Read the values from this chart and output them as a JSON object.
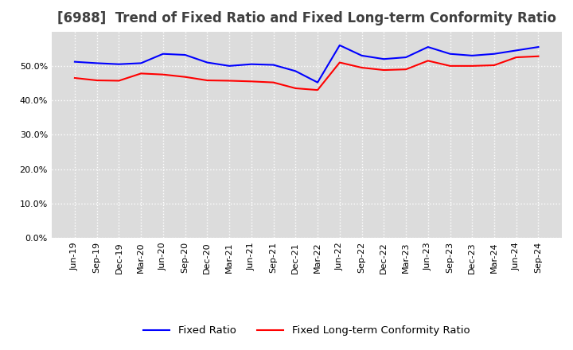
{
  "title": "[6988]  Trend of Fixed Ratio and Fixed Long-term Conformity Ratio",
  "x_labels": [
    "Jun-19",
    "Sep-19",
    "Dec-19",
    "Mar-20",
    "Jun-20",
    "Sep-20",
    "Dec-20",
    "Mar-21",
    "Jun-21",
    "Sep-21",
    "Dec-21",
    "Mar-22",
    "Jun-22",
    "Sep-22",
    "Dec-22",
    "Mar-23",
    "Jun-23",
    "Sep-23",
    "Dec-23",
    "Mar-24",
    "Jun-24",
    "Sep-24"
  ],
  "fixed_ratio": [
    51.2,
    50.8,
    50.5,
    50.8,
    53.5,
    53.2,
    51.0,
    50.0,
    50.5,
    50.3,
    48.5,
    45.2,
    56.0,
    53.0,
    52.0,
    52.5,
    55.5,
    53.5,
    53.0,
    53.5,
    54.5,
    55.5
  ],
  "fixed_lt_ratio": [
    46.5,
    45.8,
    45.7,
    47.8,
    47.5,
    46.8,
    45.8,
    45.7,
    45.5,
    45.2,
    43.5,
    43.0,
    51.0,
    49.5,
    48.8,
    49.0,
    51.5,
    50.0,
    50.0,
    50.2,
    52.5,
    52.8
  ],
  "ylim": [
    0,
    60
  ],
  "yticks": [
    0,
    10,
    20,
    30,
    40,
    50
  ],
  "blue_color": "#0000FF",
  "red_color": "#FF0000",
  "background_color": "#FFFFFF",
  "plot_bg_color": "#DCDCDC",
  "grid_color": "#FFFFFF",
  "title_fontsize": 12,
  "legend_fontsize": 9.5,
  "tick_fontsize": 8
}
